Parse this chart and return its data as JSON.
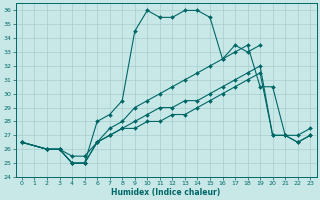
{
  "xlabel": "Humidex (Indice chaleur)",
  "xlim": [
    -0.5,
    23.5
  ],
  "ylim": [
    24,
    36.5
  ],
  "yticks": [
    24,
    25,
    26,
    27,
    28,
    29,
    30,
    31,
    32,
    33,
    34,
    35,
    36
  ],
  "xticks": [
    0,
    1,
    2,
    3,
    4,
    5,
    6,
    7,
    8,
    9,
    10,
    11,
    12,
    13,
    14,
    15,
    16,
    17,
    18,
    19,
    20,
    21,
    22,
    23
  ],
  "bg_color": "#c8e8e8",
  "line_color": "#006666",
  "grid_color": "#a8cccc",
  "series": [
    {
      "x": [
        0,
        2,
        3,
        4,
        5,
        6,
        7,
        8,
        9,
        10,
        11,
        12,
        13,
        14,
        15,
        16,
        17,
        18,
        19,
        20,
        21,
        22,
        23
      ],
      "y": [
        26.5,
        26.0,
        26.0,
        25.0,
        25.0,
        28.0,
        28.5,
        29.5,
        34.5,
        36.0,
        35.5,
        35.5,
        36.0,
        36.0,
        35.5,
        32.5,
        33.5,
        33.0,
        33.5,
        null,
        null,
        null,
        null
      ]
    },
    {
      "x": [
        0,
        2,
        3,
        4,
        5,
        6,
        7,
        8,
        9,
        10,
        11,
        12,
        13,
        14,
        15,
        16,
        17,
        18,
        19,
        20,
        21,
        22,
        23
      ],
      "y": [
        26.5,
        26.0,
        26.0,
        25.0,
        25.0,
        26.5,
        27.5,
        28.0,
        29.0,
        29.5,
        30.0,
        30.5,
        31.0,
        31.5,
        32.0,
        32.5,
        33.0,
        33.5,
        30.5,
        30.5,
        27.0,
        27.0,
        27.5
      ]
    },
    {
      "x": [
        0,
        2,
        3,
        4,
        5,
        6,
        7,
        8,
        9,
        10,
        11,
        12,
        13,
        14,
        15,
        16,
        17,
        18,
        19,
        20,
        21,
        22,
        23
      ],
      "y": [
        26.5,
        26.0,
        26.0,
        25.5,
        25.5,
        26.5,
        27.0,
        27.5,
        28.0,
        28.5,
        29.0,
        29.0,
        29.5,
        29.5,
        30.0,
        30.5,
        31.0,
        31.5,
        32.0,
        27.0,
        27.0,
        26.5,
        27.0
      ]
    },
    {
      "x": [
        0,
        2,
        3,
        4,
        5,
        6,
        7,
        8,
        9,
        10,
        11,
        12,
        13,
        14,
        15,
        16,
        17,
        18,
        19,
        20,
        21,
        22,
        23
      ],
      "y": [
        26.5,
        26.0,
        26.0,
        25.0,
        25.0,
        26.5,
        27.0,
        27.5,
        27.5,
        28.0,
        28.0,
        28.5,
        28.5,
        29.0,
        29.5,
        30.0,
        30.5,
        31.0,
        31.5,
        27.0,
        27.0,
        26.5,
        27.0
      ]
    }
  ]
}
